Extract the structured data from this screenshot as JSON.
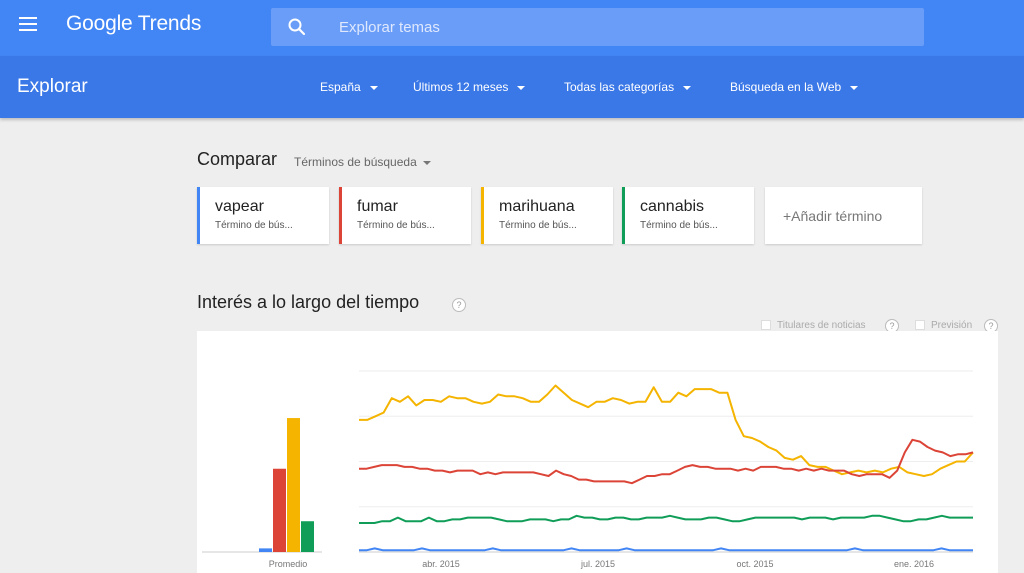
{
  "header": {
    "logo_google": "Google",
    "logo_trends": "Trends",
    "search_placeholder": "Explorar temas"
  },
  "subbar": {
    "title": "Explorar",
    "filters": [
      "España",
      "Últimos 12 meses",
      "Todas las categorías",
      "Búsqueda en la Web"
    ]
  },
  "compare": {
    "title": "Comparar",
    "type_label": "Términos de búsqueda",
    "terms": [
      {
        "term": "vapear",
        "sub": "Término de bús...",
        "color": "#4285f4"
      },
      {
        "term": "fumar",
        "sub": "Término de bús...",
        "color": "#db4437"
      },
      {
        "term": "marihuana",
        "sub": "Término de bús...",
        "color": "#f4b400"
      },
      {
        "term": "cannabis",
        "sub": "Término de bús...",
        "color": "#0f9d58"
      }
    ],
    "add_label": "+Añadir término"
  },
  "interest": {
    "title": "Interés a lo largo del tiempo",
    "help": "?",
    "options": [
      "Titulares de noticias",
      "Previsión"
    ]
  },
  "chart_data": {
    "type": "line",
    "average_bars": {
      "label": "Promedio",
      "values": {
        "vapear": 2,
        "fumar": 46,
        "marihuana": 74,
        "cannabis": 17
      }
    },
    "x_ticks": [
      "abr. 2015",
      "jul. 2015",
      "oct. 2015",
      "ene. 2016"
    ],
    "ylim": [
      0,
      100
    ],
    "grid": true,
    "series": [
      {
        "name": "marihuana",
        "color": "#f4b400",
        "values": [
          73,
          73,
          75,
          77,
          85,
          83,
          86,
          81,
          84,
          84,
          83,
          86,
          85,
          85,
          83,
          82,
          83,
          87,
          86,
          86,
          85,
          83,
          83,
          87,
          92,
          88,
          84,
          82,
          80,
          83,
          83,
          85,
          84,
          82,
          83,
          83,
          91,
          83,
          83,
          88,
          86,
          90,
          90,
          90,
          88,
          88,
          73,
          64,
          63,
          61,
          58,
          56,
          52,
          51,
          53,
          48,
          47,
          47,
          45,
          43,
          44,
          45,
          44,
          45,
          44,
          46,
          47,
          44,
          43,
          42,
          43,
          46,
          48,
          50,
          50,
          55
        ]
      },
      {
        "name": "fumar",
        "color": "#db4437",
        "values": [
          46,
          46,
          47,
          48,
          48,
          48,
          47,
          47,
          46,
          46,
          45,
          45,
          44,
          45,
          45,
          45,
          43,
          44,
          43,
          44,
          44,
          44,
          44,
          44,
          43,
          42,
          45,
          43,
          42,
          40,
          40,
          39,
          39,
          39,
          39,
          39,
          38,
          40,
          42,
          42,
          43,
          43,
          45,
          47,
          48,
          47,
          47,
          46,
          46,
          46,
          45,
          46,
          45,
          47,
          47,
          47,
          46,
          46,
          45,
          46,
          45,
          46,
          45,
          45,
          45,
          43,
          42,
          43,
          43,
          43,
          41,
          45,
          55,
          62,
          61,
          58,
          56,
          55,
          53,
          54,
          54,
          55
        ]
      },
      {
        "name": "cannabis",
        "color": "#0f9d58",
        "values": [
          16,
          16,
          16,
          17,
          17,
          19,
          17,
          17,
          17,
          19,
          17,
          17,
          18,
          18,
          19,
          19,
          19,
          19,
          18,
          17,
          17,
          17,
          18,
          18,
          18,
          17,
          18,
          18,
          20,
          19,
          19,
          18,
          18,
          19,
          19,
          18,
          18,
          19,
          19,
          19,
          20,
          19,
          18,
          18,
          18,
          19,
          19,
          18,
          17,
          17,
          18,
          19,
          19,
          19,
          19,
          19,
          19,
          18,
          19,
          19,
          19,
          18,
          19,
          19,
          19,
          19,
          20,
          20,
          19,
          18,
          17,
          17,
          18,
          18,
          19,
          20,
          19,
          19,
          19,
          19
        ]
      },
      {
        "name": "vapear",
        "color": "#4285f4",
        "values": [
          1,
          1,
          2,
          1,
          1,
          1,
          1,
          1,
          2,
          1,
          1,
          1,
          1,
          1,
          1,
          1,
          1,
          2,
          1,
          1,
          1,
          1,
          1,
          1,
          1,
          1,
          1,
          2,
          1,
          1,
          1,
          1,
          1,
          1,
          2,
          1,
          1,
          1,
          1,
          1,
          1,
          1,
          1,
          1,
          1,
          1,
          2,
          1,
          1,
          1,
          1,
          1,
          1,
          1,
          1,
          1,
          1,
          1,
          1,
          1,
          1,
          1,
          1,
          2,
          1,
          1,
          1,
          1,
          1,
          1,
          1,
          1,
          1,
          1,
          2,
          1,
          1,
          1,
          1
        ]
      }
    ]
  }
}
